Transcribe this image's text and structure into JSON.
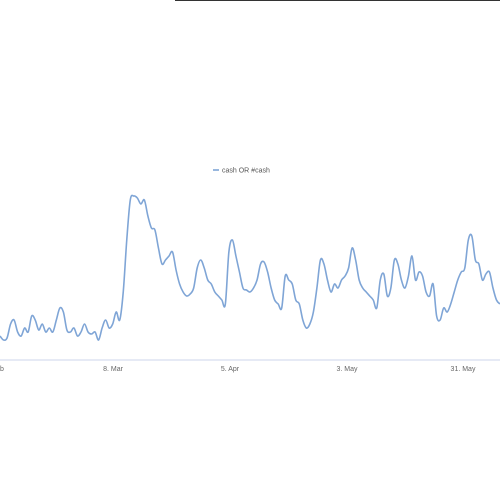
{
  "chart_data": {
    "type": "line",
    "title": "",
    "xlabel": "",
    "ylabel": "",
    "grid": false,
    "legend_position": "top-center",
    "x_tick_labels": [
      "b",
      "8. Mar",
      "5. Apr",
      "3. May",
      "31. May"
    ],
    "series": [
      {
        "name": "cash OR #cash",
        "color": "#7fa5d6",
        "values": [
          12,
          10,
          11,
          18,
          20,
          14,
          12,
          16,
          14,
          22,
          20,
          15,
          18,
          14,
          16,
          14,
          20,
          26,
          24,
          15,
          14,
          16,
          12,
          14,
          18,
          14,
          13,
          14,
          10,
          16,
          20,
          16,
          18,
          24,
          20,
          34,
          60,
          80,
          82,
          81,
          78,
          80,
          72,
          66,
          65,
          56,
          48,
          50,
          52,
          54,
          45,
          38,
          34,
          32,
          33,
          36,
          46,
          50,
          46,
          40,
          38,
          34,
          32,
          30,
          28,
          54,
          60,
          52,
          44,
          36,
          35,
          34,
          36,
          40,
          48,
          49,
          44,
          36,
          30,
          28,
          26,
          42,
          40,
          38,
          30,
          28,
          20,
          16,
          18,
          24,
          36,
          50,
          48,
          40,
          34,
          38,
          36,
          40,
          42,
          46,
          56,
          50,
          40,
          36,
          34,
          32,
          30,
          26,
          40,
          43,
          32,
          36,
          50,
          48,
          40,
          36,
          42,
          52,
          40,
          44,
          42,
          34,
          32,
          38,
          22,
          20,
          26,
          24,
          28,
          34,
          40,
          44,
          46,
          60,
          62,
          50,
          48,
          40,
          43,
          44,
          36,
          30,
          28
        ]
      }
    ],
    "ylim": [
      0,
      100
    ]
  }
}
